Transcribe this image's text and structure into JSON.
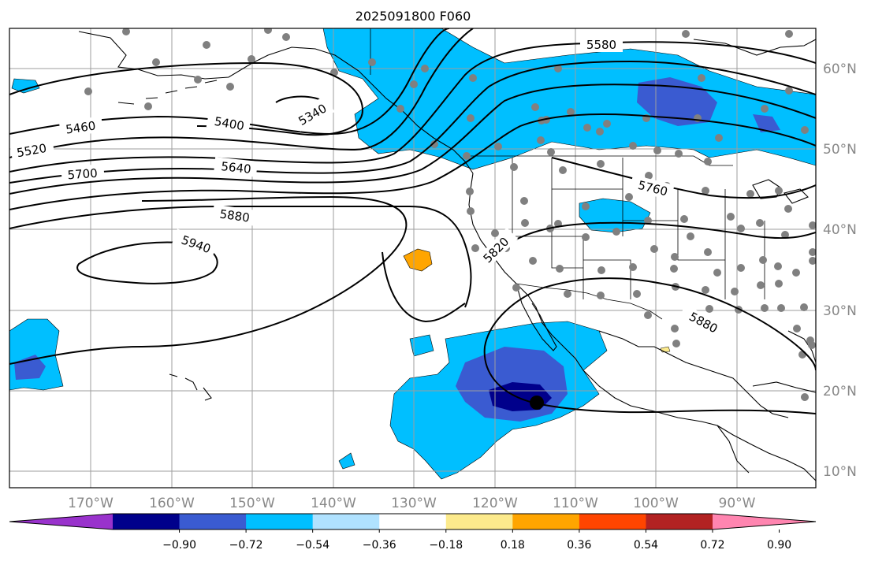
{
  "title": "2025091800 F060",
  "lon_labels": [
    "170°W",
    "160°W",
    "150°W",
    "140°W",
    "130°W",
    "120°W",
    "110°W",
    "100°W",
    "90°W"
  ],
  "lat_labels": [
    "60°N",
    "50°N",
    "40°N",
    "30°N",
    "20°N",
    "10°N"
  ],
  "contour_labels": [
    "5580",
    "5340",
    "5400",
    "5460",
    "5520",
    "5640",
    "5700",
    "5760",
    "5820",
    "5880",
    "5880",
    "5940"
  ],
  "colorbar": {
    "ticks": [
      "−0.90",
      "−0.72",
      "−0.54",
      "−0.36",
      "−0.18",
      "0.18",
      "0.36",
      "0.54",
      "0.72",
      "0.90"
    ],
    "colors": [
      "#9932cc",
      "#00008b",
      "#3a5bd1",
      "#00bfff",
      "#b0e2ff",
      "#ffffff",
      "#fcea8c",
      "#ffa500",
      "#ff4500",
      "#b22222",
      "#ff85b0"
    ]
  }
}
